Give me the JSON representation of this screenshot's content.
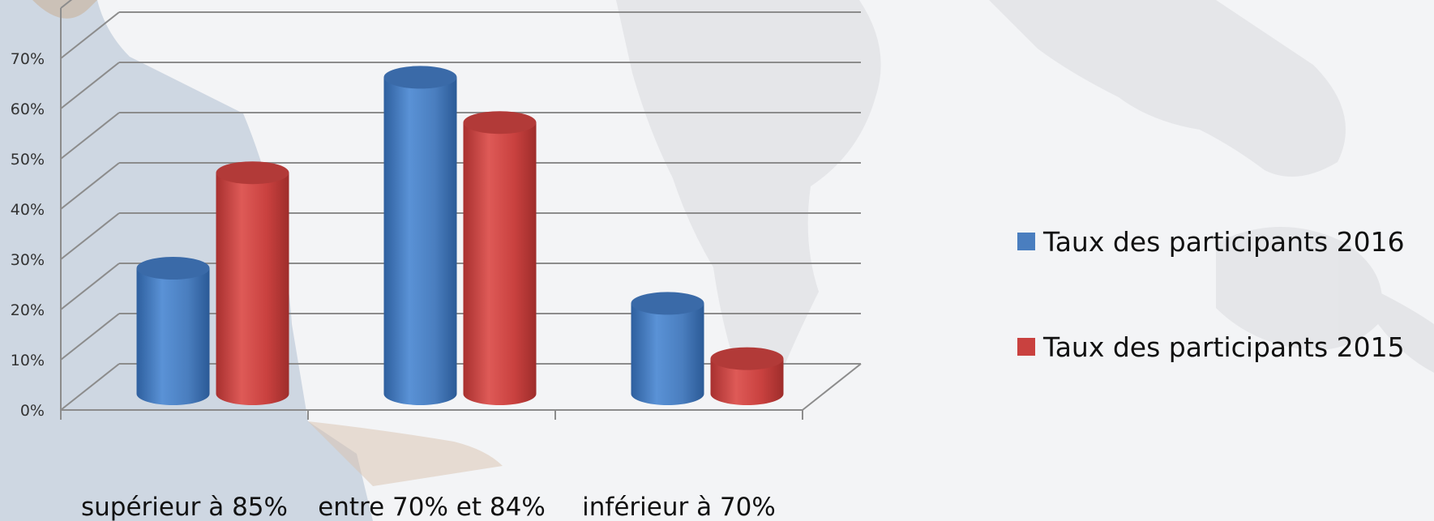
{
  "chart_data": {
    "type": "bar",
    "categories": [
      "supérieur à 85%",
      "entre 70% et 84%",
      "inférieur à 70%"
    ],
    "series": [
      {
        "name": "Taux des participants 2016",
        "values": [
          25,
          63,
          18
        ],
        "color": "#4a7ebf"
      },
      {
        "name": "Taux des participants 2015",
        "values": [
          44,
          54,
          7
        ],
        "color": "#c9413f"
      }
    ],
    "y_ticks": [
      "0%",
      "10%",
      "20%",
      "30%",
      "40%",
      "50%",
      "60%",
      "70%"
    ],
    "ylim": [
      0,
      80
    ],
    "grid": true,
    "legend_position": "right",
    "style": "3d-cylinder"
  }
}
